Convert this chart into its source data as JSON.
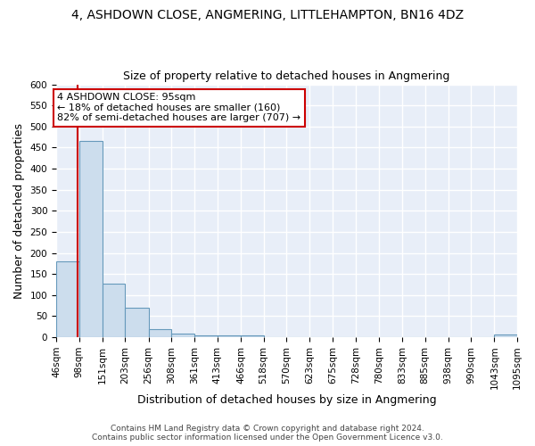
{
  "title": "4, ASHDOWN CLOSE, ANGMERING, LITTLEHAMPTON, BN16 4DZ",
  "subtitle": "Size of property relative to detached houses in Angmering",
  "xlabel": "Distribution of detached houses by size in Angmering",
  "ylabel": "Number of detached properties",
  "footnote1": "Contains HM Land Registry data © Crown copyright and database right 2024.",
  "footnote2": "Contains public sector information licensed under the Open Government Licence v3.0.",
  "bar_labels": [
    "46sqm",
    "98sqm",
    "151sqm",
    "203sqm",
    "256sqm",
    "308sqm",
    "361sqm",
    "413sqm",
    "466sqm",
    "518sqm",
    "570sqm",
    "623sqm",
    "675sqm",
    "728sqm",
    "780sqm",
    "833sqm",
    "885sqm",
    "938sqm",
    "990sqm",
    "1043sqm",
    "1095sqm"
  ],
  "bar_values": [
    180,
    465,
    128,
    70,
    20,
    8,
    5,
    5,
    5,
    0,
    0,
    0,
    0,
    0,
    0,
    0,
    0,
    0,
    0,
    7,
    0
  ],
  "bar_color": "#ccdded",
  "bar_edge_color": "#6699bb",
  "background_color": "#e8eef8",
  "grid_color": "#ffffff",
  "fig_background": "#ffffff",
  "ylim": [
    0,
    600
  ],
  "yticks": [
    0,
    50,
    100,
    150,
    200,
    250,
    300,
    350,
    400,
    450,
    500,
    550,
    600
  ],
  "property_line_x": 95,
  "property_line_color": "#cc0000",
  "annotation_text": "4 ASHDOWN CLOSE: 95sqm\n← 18% of detached houses are smaller (160)\n82% of semi-detached houses are larger (707) →",
  "annotation_box_color": "#ffffff",
  "annotation_box_edge": "#cc0000",
  "title_fontsize": 10,
  "subtitle_fontsize": 9,
  "axis_label_fontsize": 9,
  "tick_fontsize": 7.5,
  "annotation_fontsize": 8,
  "footnote_fontsize": 6.5
}
